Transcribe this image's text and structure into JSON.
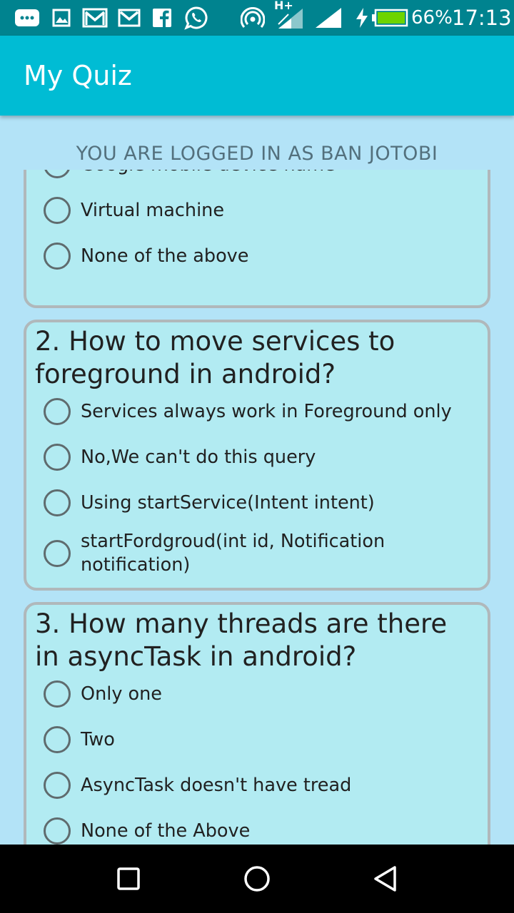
{
  "status_bar": {
    "battery_percent": "66%",
    "time": "17:13",
    "network_label": "H+",
    "icons": [
      "more-icon",
      "gallery-icon",
      "gmail-icon",
      "gmail-icon",
      "facebook-icon",
      "whatsapp-icon",
      "hotspot-icon",
      "signal-icon",
      "signal-icon",
      "charging-icon",
      "battery-icon"
    ]
  },
  "app_bar": {
    "title": "My Quiz"
  },
  "login_banner": "YOU ARE LOGGED IN AS BAN JOTOBI",
  "questions": [
    {
      "question": "",
      "options": [
        "Google mobile device name",
        "Virtual machine",
        "None of the above"
      ]
    },
    {
      "question": "2. How to move services to foreground in android?",
      "options": [
        "Services always work in Foreground only",
        "No,We can't do this query",
        "Using startService(Intent intent)",
        "startFordgroud(int id, Notification notification)"
      ]
    },
    {
      "question": "3. How many threads are there in asyncTask in android?",
      "options": [
        "Only one",
        "Two",
        "AsyncTask doesn't have tread",
        "None of the Above"
      ]
    }
  ],
  "nav_bar": {
    "buttons": [
      "recents-icon",
      "home-icon",
      "back-icon"
    ]
  },
  "colors": {
    "status_bar": "#00838f",
    "app_bar": "#00bcd4",
    "background": "#b3e3f7",
    "card": "#b2ebf2",
    "card_border": "#b0b8bb",
    "nav_bar": "#000000"
  }
}
